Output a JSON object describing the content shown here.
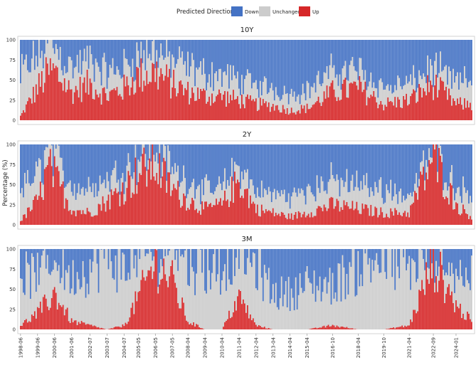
{
  "chart_data": {
    "type": "stacked-bar",
    "ylabel": "Percentage (%)",
    "ylim": [
      0,
      100
    ],
    "yticks": [
      0,
      25,
      50,
      75,
      100
    ],
    "legend": {
      "title": "Predicted Direction",
      "placement": "top-center",
      "entries": [
        {
          "name": "Down",
          "color": "#4472c4"
        },
        {
          "name": "Unchanged",
          "color": "#cccccc"
        },
        {
          "name": "Up",
          "color": "#d62728"
        }
      ]
    },
    "x_start": "1998-06",
    "x_end": "2024-12",
    "x_tick_labels": [
      "1998-06",
      "1999-06",
      "2000-06",
      "2001-06",
      "2002-07",
      "2003-07",
      "2004-07",
      "2005-05",
      "2006-05",
      "2007-05",
      "2008-04",
      "2009-04",
      "2010-04",
      "2011-04",
      "2012-04",
      "2013-04",
      "2014-04",
      "2015-04",
      "2016-10",
      "2018-04",
      "2019-10",
      "2021-04",
      "2022-09",
      "2024-01"
    ],
    "panels": [
      {
        "title": "10Y",
        "up_anchors": [
          [
            "1998-06",
            5
          ],
          [
            "1999-06",
            40
          ],
          [
            "2000-02",
            60
          ],
          [
            "2000-06",
            60
          ],
          [
            "2001-06",
            35
          ],
          [
            "2002-07",
            45
          ],
          [
            "2003-07",
            30
          ],
          [
            "2004-07",
            40
          ],
          [
            "2005-05",
            55
          ],
          [
            "2006-05",
            60
          ],
          [
            "2007-05",
            45
          ],
          [
            "2008-04",
            35
          ],
          [
            "2009-04",
            30
          ],
          [
            "2010-04",
            30
          ],
          [
            "2011-04",
            25
          ],
          [
            "2012-04",
            20
          ],
          [
            "2013-04",
            18
          ],
          [
            "2014-04",
            12
          ],
          [
            "2015-04",
            15
          ],
          [
            "2016-10",
            35
          ],
          [
            "2018-04",
            40
          ],
          [
            "2019-10",
            20
          ],
          [
            "2021-04",
            25
          ],
          [
            "2022-09",
            45
          ],
          [
            "2024-01",
            20
          ],
          [
            "2024-12",
            20
          ]
        ],
        "unch_anchors": [
          [
            "1998-06",
            50
          ],
          [
            "2000-06",
            30
          ],
          [
            "2002-07",
            30
          ],
          [
            "2005-05",
            25
          ],
          [
            "2008-04",
            30
          ],
          [
            "2011-04",
            25
          ],
          [
            "2014-04",
            20
          ],
          [
            "2016-10",
            25
          ],
          [
            "2019-10",
            20
          ],
          [
            "2022-09",
            20
          ],
          [
            "2024-12",
            30
          ]
        ]
      },
      {
        "title": "2Y",
        "up_anchors": [
          [
            "1998-06",
            5
          ],
          [
            "1999-06",
            30
          ],
          [
            "2000-02",
            70
          ],
          [
            "2000-06",
            60
          ],
          [
            "2001-06",
            20
          ],
          [
            "2002-07",
            15
          ],
          [
            "2003-07",
            30
          ],
          [
            "2004-07",
            45
          ],
          [
            "2005-05",
            65
          ],
          [
            "2006-05",
            75
          ],
          [
            "2007-05",
            45
          ],
          [
            "2008-04",
            30
          ],
          [
            "2009-04",
            20
          ],
          [
            "2010-04",
            25
          ],
          [
            "2011-04",
            55
          ],
          [
            "2012-04",
            20
          ],
          [
            "2013-04",
            15
          ],
          [
            "2014-04",
            10
          ],
          [
            "2015-04",
            15
          ],
          [
            "2016-10",
            25
          ],
          [
            "2018-04",
            20
          ],
          [
            "2019-10",
            15
          ],
          [
            "2021-04",
            15
          ],
          [
            "2022-09",
            85
          ],
          [
            "2024-01",
            25
          ],
          [
            "2024-12",
            10
          ]
        ],
        "unch_anchors": [
          [
            "1998-06",
            40
          ],
          [
            "2000-06",
            25
          ],
          [
            "2002-07",
            30
          ],
          [
            "2005-05",
            20
          ],
          [
            "2008-04",
            25
          ],
          [
            "2011-04",
            20
          ],
          [
            "2014-04",
            25
          ],
          [
            "2016-10",
            30
          ],
          [
            "2019-10",
            30
          ],
          [
            "2022-09",
            10
          ],
          [
            "2024-12",
            30
          ]
        ]
      },
      {
        "title": "3M",
        "up_anchors": [
          [
            "1998-06",
            5
          ],
          [
            "1999-06",
            20
          ],
          [
            "2000-06",
            45
          ],
          [
            "2001-06",
            10
          ],
          [
            "2002-07",
            5
          ],
          [
            "2003-07",
            0
          ],
          [
            "2004-07",
            5
          ],
          [
            "2005-05",
            40
          ],
          [
            "2006-05",
            85
          ],
          [
            "2007-05",
            60
          ],
          [
            "2008-04",
            10
          ],
          [
            "2009-04",
            0
          ],
          [
            "2010-04",
            0
          ],
          [
            "2011-04",
            40
          ],
          [
            "2012-04",
            5
          ],
          [
            "2013-04",
            0
          ],
          [
            "2014-04",
            0
          ],
          [
            "2015-04",
            0
          ],
          [
            "2016-10",
            5
          ],
          [
            "2018-04",
            0
          ],
          [
            "2019-10",
            0
          ],
          [
            "2021-04",
            5
          ],
          [
            "2022-09",
            85
          ],
          [
            "2024-01",
            30
          ],
          [
            "2024-12",
            10
          ]
        ],
        "unch_anchors": [
          [
            "1998-06",
            60
          ],
          [
            "2000-06",
            40
          ],
          [
            "2002-07",
            70
          ],
          [
            "2003-07",
            95
          ],
          [
            "2005-05",
            50
          ],
          [
            "2006-05",
            10
          ],
          [
            "2008-04",
            75
          ],
          [
            "2009-04",
            80
          ],
          [
            "2010-04",
            80
          ],
          [
            "2011-04",
            50
          ],
          [
            "2012-04",
            75
          ],
          [
            "2013-04",
            45
          ],
          [
            "2014-04",
            45
          ],
          [
            "2015-04",
            55
          ],
          [
            "2016-10",
            50
          ],
          [
            "2018-04",
            80
          ],
          [
            "2019-10",
            90
          ],
          [
            "2021-04",
            70
          ],
          [
            "2022-09",
            10
          ],
          [
            "2024-01",
            40
          ],
          [
            "2024-12",
            55
          ]
        ]
      }
    ]
  }
}
